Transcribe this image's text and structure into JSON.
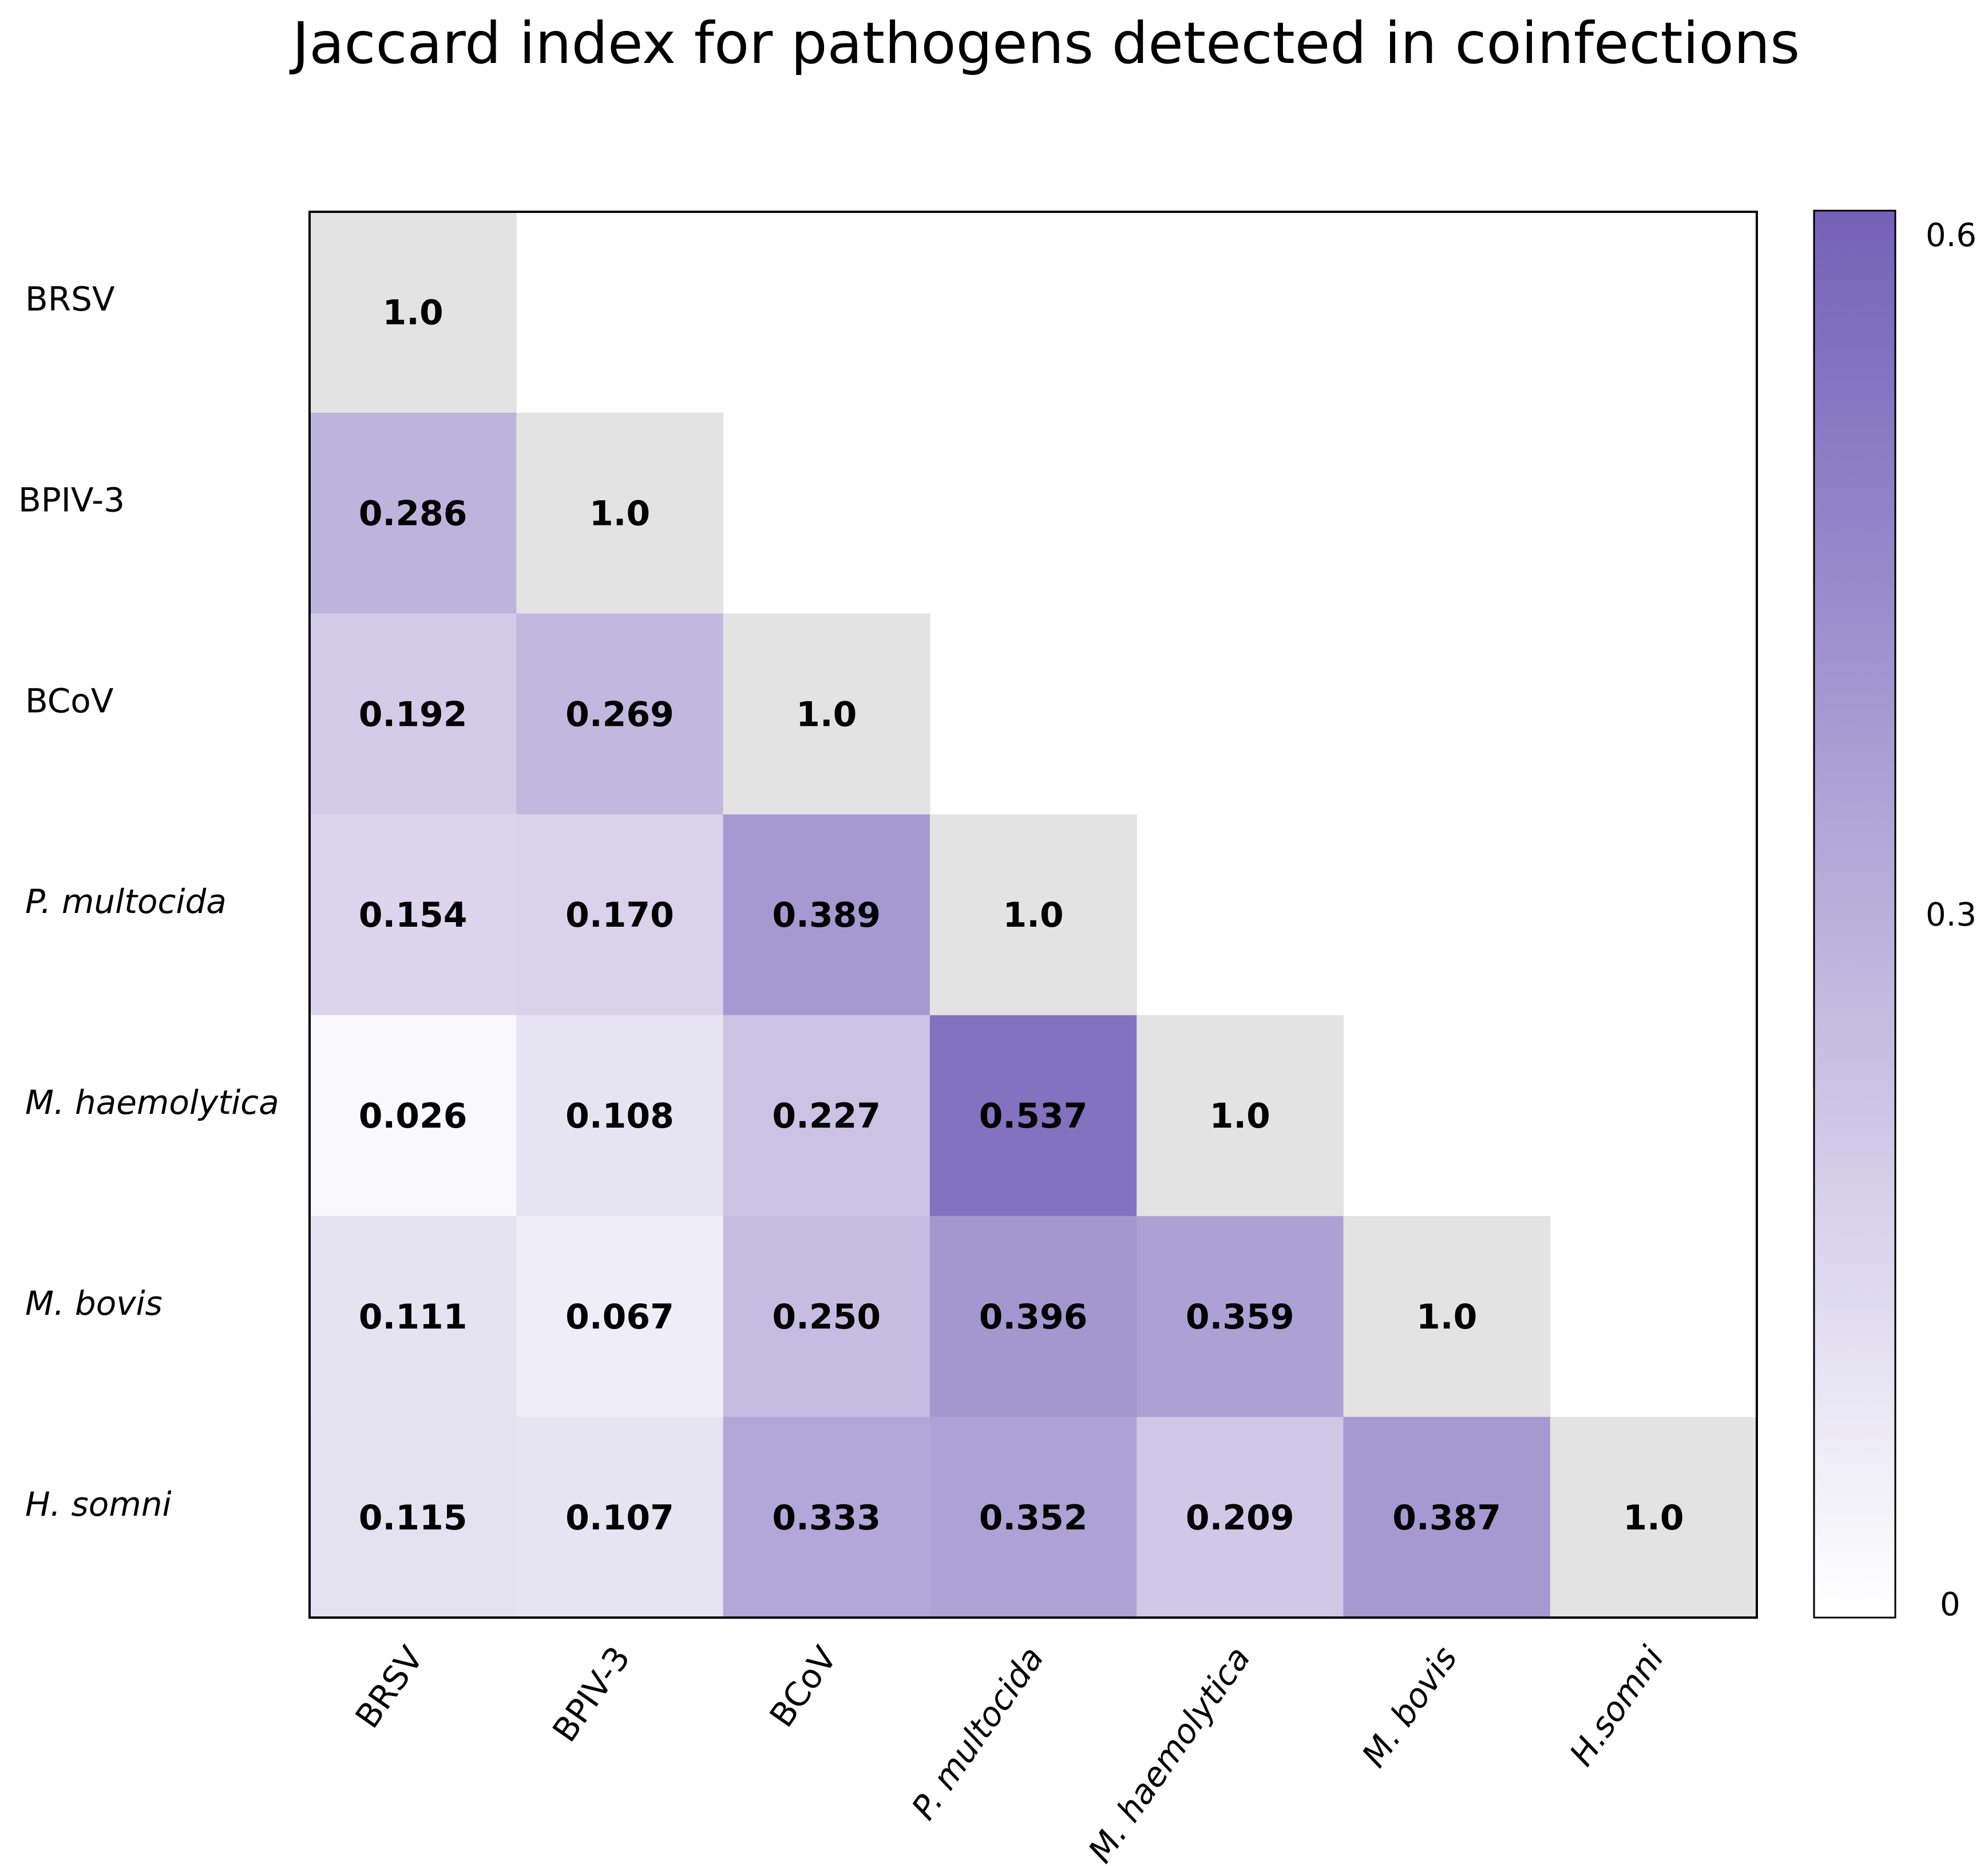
{
  "chart_data": {
    "type": "heatmap",
    "title": "Jaccard index for pathogens detected in coinfections",
    "rows": [
      "BRSV",
      "BPIV-3",
      "BCoV",
      "P. multocida",
      "M. haemolytica",
      "M. bovis",
      "H. somni"
    ],
    "row_italic": [
      false,
      false,
      false,
      true,
      true,
      true,
      true
    ],
    "columns": [
      "BRSV",
      "BPIV-3",
      "BCoV",
      "P. multocida",
      "M. haemolytica",
      "M. bovis",
      "H.somni"
    ],
    "column_italic": [
      false,
      false,
      false,
      true,
      true,
      true,
      true
    ],
    "values": [
      [
        "1.0"
      ],
      [
        "0.286",
        "1.0"
      ],
      [
        "0.192",
        "0.269",
        "1.0"
      ],
      [
        "0.154",
        "0.170",
        "0.389",
        "1.0"
      ],
      [
        "0.026",
        "0.108",
        "0.227",
        "0.537",
        "1.0"
      ],
      [
        "0.111",
        "0.067",
        "0.250",
        "0.396",
        "0.359",
        "1.0"
      ],
      [
        "0.115",
        "0.107",
        "0.333",
        "0.352",
        "0.209",
        "0.387",
        "1.0"
      ]
    ],
    "diagonal_color": "#e3e3e3",
    "colorbar": {
      "min": 0,
      "max": 0.6,
      "ticks": [
        "0",
        "0.3",
        "0.6"
      ],
      "low_color": "#ffffff",
      "high_color": "#7461b8"
    }
  }
}
